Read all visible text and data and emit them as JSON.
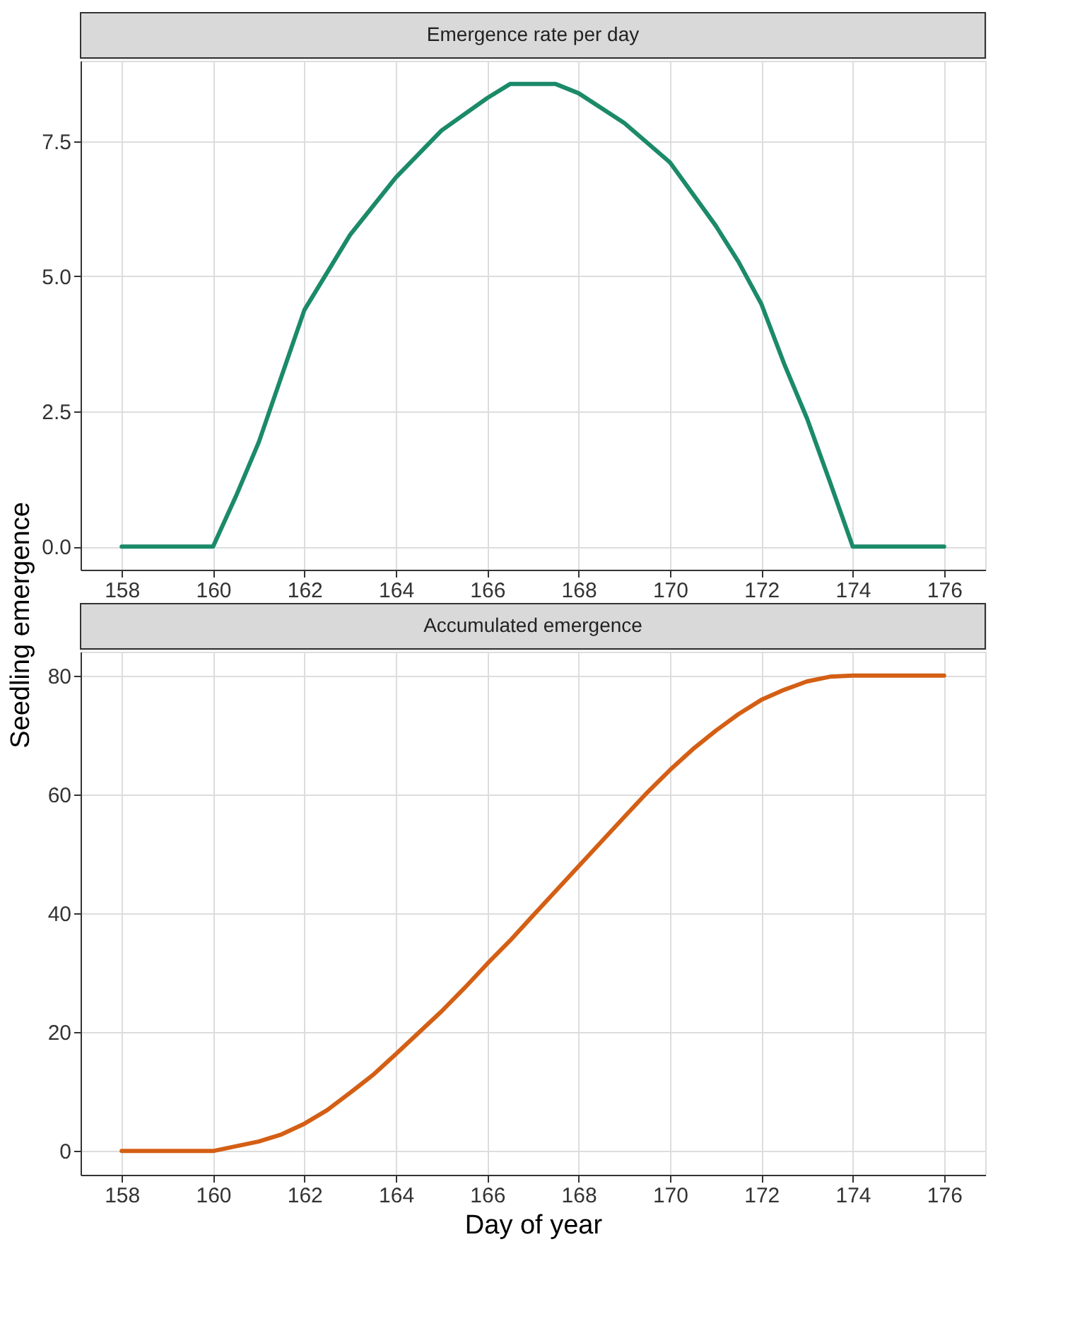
{
  "chart_data": [
    {
      "type": "line",
      "title": "Emergence rate per day",
      "ylabel": "Seedling emergence",
      "x": [
        158,
        160,
        160.5,
        161,
        162,
        163,
        164,
        165,
        166,
        166.5,
        167.5,
        168,
        169,
        170,
        171,
        171.5,
        172,
        172.5,
        173,
        173.5,
        174,
        176
      ],
      "series": [
        {
          "color": "#1b8a68",
          "values": [
            0,
            0,
            0.93,
            1.93,
            4.38,
            5.77,
            6.83,
            7.7,
            8.3,
            8.56,
            8.56,
            8.39,
            7.84,
            7.11,
            5.94,
            5.27,
            4.49,
            3.38,
            2.37,
            1.2,
            0,
            0
          ]
        }
      ],
      "xlim": [
        157.1,
        176.9
      ],
      "xticks": [
        158,
        160,
        162,
        164,
        166,
        168,
        170,
        172,
        174,
        176
      ],
      "ylim": [
        -0.43,
        8.99
      ],
      "yticks": [
        {
          "value": 0,
          "label": "0.0"
        },
        2.5,
        {
          "value": 5,
          "label": "5.0"
        },
        7.5
      ],
      "grid": true
    },
    {
      "type": "line",
      "title": "Accumulated emergence",
      "xlabel": "Day of year",
      "x": [
        158,
        160,
        161,
        161.5,
        162,
        162.5,
        163,
        163.5,
        164,
        164.5,
        165,
        165.5,
        166,
        166.5,
        167,
        168,
        169,
        169.5,
        170,
        170.5,
        171,
        171.5,
        172,
        172.5,
        173,
        173.5,
        174,
        176
      ],
      "series": [
        {
          "color": "#d45f14",
          "values": [
            0,
            0,
            1.6,
            2.8,
            4.6,
            6.9,
            9.8,
            12.8,
            16.3,
            19.9,
            23.5,
            27.4,
            31.5,
            35.4,
            39.6,
            47.9,
            56.2,
            60.3,
            64.1,
            67.6,
            70.7,
            73.5,
            75.9,
            77.6,
            79.0,
            79.8,
            80,
            80
          ]
        }
      ],
      "xlim": [
        157.1,
        176.9
      ],
      "xticks": [
        158,
        160,
        162,
        164,
        166,
        168,
        170,
        172,
        174,
        176
      ],
      "ylim": [
        -4,
        84
      ],
      "yticks": [
        0,
        20,
        40,
        60,
        80
      ],
      "grid": true
    }
  ]
}
